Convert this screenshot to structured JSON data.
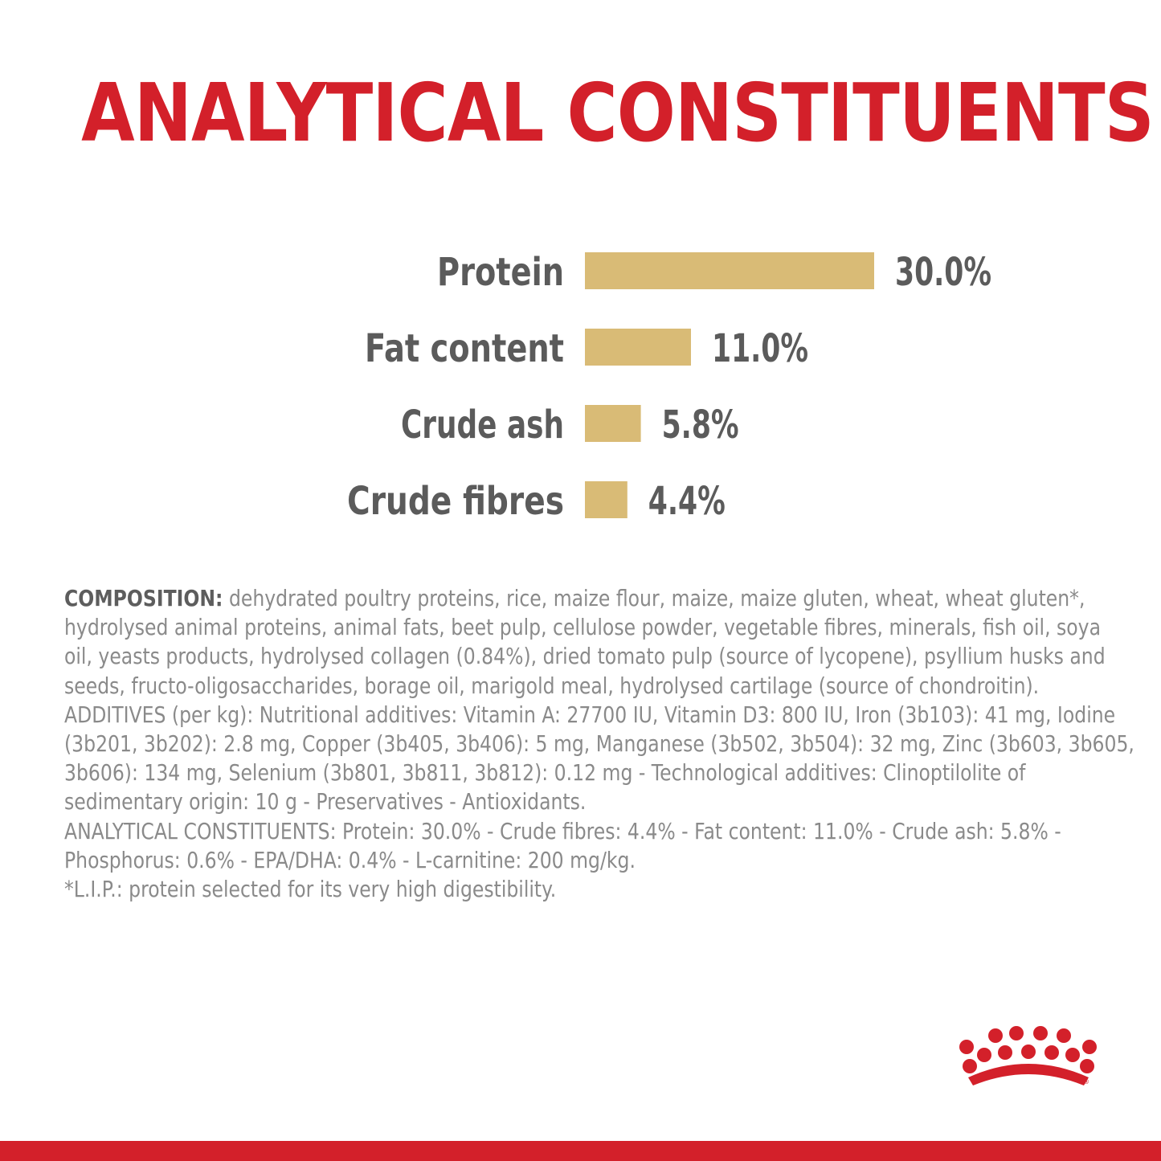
{
  "heading": "ANALYTICAL CONSTITUENTS",
  "colors": {
    "brand_red": "#d3202a",
    "bar_gold": "#d9bb76",
    "label_gray": "#5b5b5b",
    "text_gray": "#8a8a8a"
  },
  "chart_data": {
    "type": "bar",
    "orientation": "horizontal",
    "categories": [
      "Protein",
      "Fat content",
      "Crude ash",
      "Crude fibres"
    ],
    "values": [
      30.0,
      11.0,
      5.8,
      4.4
    ],
    "value_labels": [
      "30.0%",
      "11.0%",
      "5.8%",
      "4.4%"
    ],
    "unit": "%",
    "grid": false,
    "legend": "none"
  },
  "composition": {
    "lead": "COMPOSITION:",
    "lines": [
      " dehydrated poultry proteins, rice, maize flour, maize, maize gluten, wheat, wheat gluten*,",
      "hydrolysed animal proteins, animal fats, beet pulp, cellulose powder, vegetable fibres, minerals, fish oil, soya",
      "oil, yeasts products, hydrolysed collagen (0.84%), dried tomato pulp (source of lycopene), psyllium husks and",
      "seeds, fructo-oligosaccharides, borage oil, marigold meal, hydrolysed cartilage (source of chondroitin).",
      "ADDITIVES (per kg): Nutritional additives: Vitamin A: 27700 IU, Vitamin D3: 800 IU, Iron (3b103): 41 mg, Iodine",
      "(3b201, 3b202): 2.8 mg, Copper (3b405, 3b406): 5 mg, Manganese (3b502, 3b504): 32 mg, Zinc (3b603, 3b605,",
      "3b606): 134 mg, Selenium (3b801, 3b811, 3b812): 0.12 mg - Technological additives: Clinoptilolite of",
      "sedimentary origin: 10 g - Preservatives - Antioxidants.",
      "ANALYTICAL CONSTITUENTS: Protein: 30.0% - Crude fibres: 4.4% - Fat content: 11.0% - Crude ash: 5.8% -",
      "Phosphorus: 0.6% - EPA/DHA: 0.4% - L-carnitine: 200 mg/kg.",
      "*L.I.P.: protein selected for its very high digestibility."
    ]
  },
  "logo_icon": "crown-logo-icon"
}
